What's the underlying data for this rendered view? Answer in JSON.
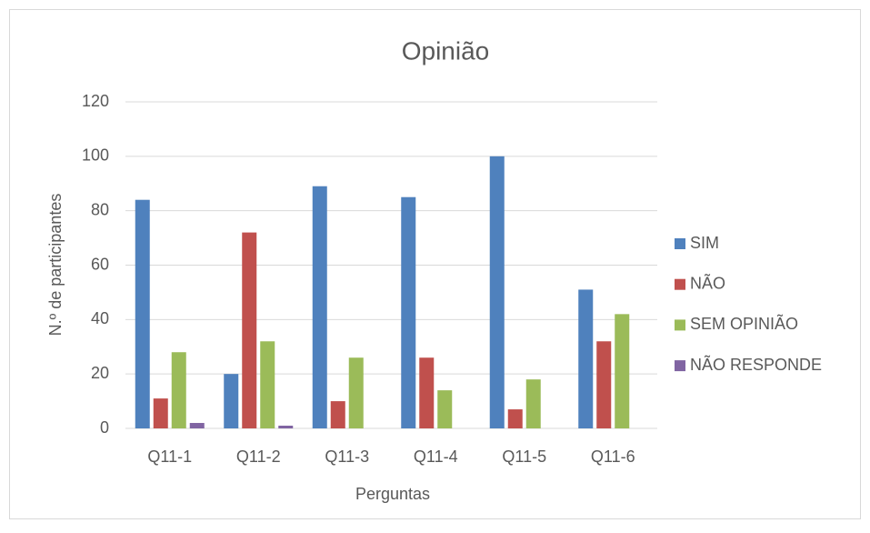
{
  "chart_data": {
    "type": "bar",
    "title": "Opinião",
    "x_label": "Perguntas",
    "y_label": "N.º de participantes",
    "categories": [
      "Q11-1",
      "Q11-2",
      "Q11-3",
      "Q11-4",
      "Q11-5",
      "Q11-6"
    ],
    "series": [
      {
        "name": "SIM",
        "color": "#4f81bd",
        "values": [
          84,
          20,
          89,
          85,
          100,
          51
        ]
      },
      {
        "name": "NÃO",
        "color": "#c0504d",
        "values": [
          11,
          72,
          10,
          26,
          7,
          32
        ]
      },
      {
        "name": "SEM OPINIÃO",
        "color": "#9bbb59",
        "values": [
          28,
          32,
          26,
          14,
          18,
          42
        ]
      },
      {
        "name": "NÃO RESPONDE",
        "color": "#8064a2",
        "values": [
          2,
          1,
          0,
          0,
          0,
          0
        ]
      }
    ],
    "ylim": [
      0,
      120
    ],
    "yticks": [
      0,
      20,
      40,
      60,
      80,
      100,
      120
    ],
    "grid": true,
    "legend": "right"
  }
}
